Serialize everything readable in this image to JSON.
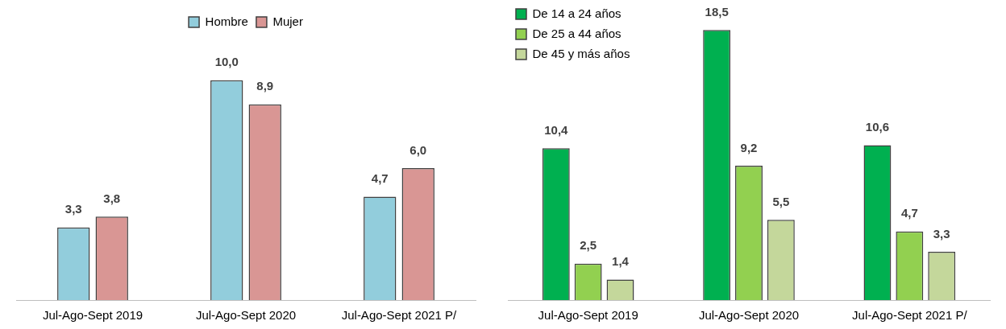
{
  "chart_data": [
    {
      "type": "bar",
      "categories": [
        "Jul-Ago-Sept 2019",
        "Jul-Ago-Sept 2020",
        "Jul-Ago-Sept 2021 P/"
      ],
      "legend": "top",
      "series": [
        {
          "name": "Hombre",
          "color": "#92cddc",
          "values": [
            3.3,
            10.0,
            4.7
          ],
          "value_labels": [
            "3,3",
            "10,0",
            "4,7"
          ]
        },
        {
          "name": "Mujer",
          "color": "#d99694",
          "values": [
            3.8,
            8.9,
            6.0
          ],
          "value_labels": [
            "3,8",
            "8,9",
            "6,0"
          ]
        }
      ]
    },
    {
      "type": "bar",
      "categories": [
        "Jul-Ago-Sept 2019",
        "Jul-Ago-Sept 2020",
        "Jul-Ago-Sept 2021 P/"
      ],
      "legend": "top left",
      "series": [
        {
          "name": "De 14 a 24 años",
          "color": "#00b050",
          "values": [
            10.4,
            18.5,
            10.6
          ],
          "value_labels": [
            "10,4",
            "18,5",
            "10,6"
          ]
        },
        {
          "name": "De 25 a 44 años",
          "color": "#92d050",
          "values": [
            2.5,
            9.2,
            4.7
          ],
          "value_labels": [
            "2,5",
            "9,2",
            "4,7"
          ]
        },
        {
          "name": "De 45 y más años",
          "color": "#c4d79b",
          "values": [
            1.4,
            5.5,
            3.3
          ],
          "value_labels": [
            "1,4",
            "5,5",
            "3,3"
          ]
        }
      ]
    }
  ]
}
